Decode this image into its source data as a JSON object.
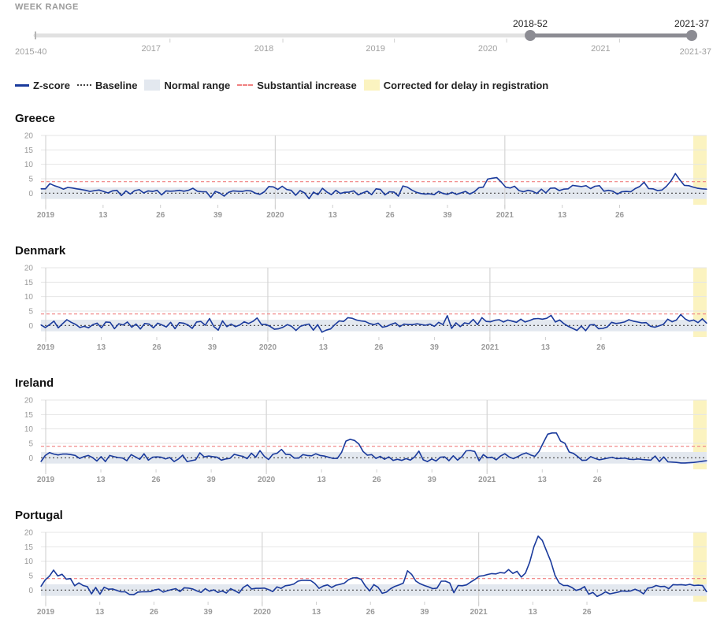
{
  "range": {
    "header": "WEEK RANGE",
    "min_label": "2015-40",
    "max_label": "2021-37",
    "start_handle": "2018-52",
    "end_handle": "2021-37",
    "start_fraction": 0.754,
    "year_labels": [
      {
        "label": "2017",
        "frac": 0.205
      },
      {
        "label": "2018",
        "frac": 0.377
      },
      {
        "label": "2019",
        "frac": 0.547
      },
      {
        "label": "2020",
        "frac": 0.718
      },
      {
        "label": "2021",
        "frac": 0.89
      }
    ]
  },
  "legend": {
    "zscore": "Z-score",
    "baseline": "Baseline",
    "normal": "Normal range",
    "substantial": "Substantial increase",
    "corrected": "Corrected for delay in registration"
  },
  "colors": {
    "series": "#1a3a9c",
    "baseline": "#444444",
    "normal_band": "#e3e8ef",
    "substantial": "#f08080",
    "corrected": "#fbf3c0",
    "grid": "#e6e6e6",
    "track": "#e1e1e1",
    "track_active": "#8c8c93"
  },
  "chart_data": [
    {
      "type": "line",
      "title": "Greece",
      "ylim": [
        -4,
        20
      ],
      "yticks": [
        0,
        5,
        10,
        15,
        20
      ],
      "xticks": [
        "2019",
        "13",
        "26",
        "39",
        "2020",
        "13",
        "26",
        "39",
        "2021",
        "13",
        "26"
      ],
      "normal_range": [
        -2,
        2
      ],
      "substantial_threshold": 4,
      "baseline": 0,
      "corrected_last_weeks": 2,
      "series": [
        {
          "values": [
            1.5,
            1.5,
            3.3,
            2.6,
            2.1,
            1.4,
            2.0,
            1.8,
            1.5,
            1.3,
            1.0,
            0.6,
            0.9,
            1.1,
            0.6,
            0.1,
            0.8,
            1.0,
            -0.8,
            0.8,
            -0.3,
            0.9,
            1.2,
            0.1,
            0.8,
            0.6,
            1.0,
            -0.6,
            0.8,
            0.7,
            0.8,
            1.0,
            0.7,
            1.0,
            1.7,
            0.7,
            0.5,
            0.5,
            -1.5,
            0.6,
            0.1,
            -1.0,
            0.3,
            0.8,
            0.7,
            0.6,
            0.9,
            0.8,
            0.0,
            -0.4,
            0.5,
            2.3,
            2.2,
            1.3,
            2.4,
            1.3,
            1.0,
            -0.7,
            0.9,
            0.1,
            -1.9,
            0.4,
            -0.5,
            1.7,
            0.4,
            -0.5,
            1.0,
            -0.1,
            0.3,
            0.4,
            0.8,
            -0.6,
            0.1,
            0.7,
            -0.5,
            1.5,
            1.3,
            -0.6,
            0.5,
            0.4,
            -1.0,
            2.5,
            2.1,
            1.1,
            0.3,
            -0.1,
            -0.3,
            -0.2,
            -0.5,
            0.6,
            -0.1,
            -0.4,
            0.3,
            -0.4,
            0.1,
            0.6,
            -0.3,
            0.5,
            1.9,
            2.1,
            4.9,
            5.2,
            5.4,
            3.9,
            2.1,
            1.8,
            2.4,
            0.9,
            0.5,
            1.0,
            0.7,
            -0.1,
            1.4,
            0.1,
            1.7,
            1.8,
            0.9,
            1.4,
            1.5,
            2.7,
            2.5,
            2.3,
            2.6,
            1.6,
            2.4,
            2.6,
            0.7,
            1.0,
            0.7,
            -0.3,
            0.5,
            0.6,
            0.5,
            1.6,
            2.3,
            3.8,
            1.6,
            1.5,
            0.9,
            1.1,
            2.4,
            4.2,
            6.8,
            4.6,
            2.7,
            2.6,
            2.1,
            1.7,
            1.5,
            1.4
          ]
        }
      ]
    },
    {
      "type": "line",
      "title": "Denmark",
      "ylim": [
        -4,
        20
      ],
      "yticks": [
        0,
        5,
        10,
        15,
        20
      ],
      "xticks": [
        "2019",
        "13",
        "26",
        "39",
        "2020",
        "13",
        "26",
        "39",
        "2021",
        "13",
        "26"
      ],
      "normal_range": [
        -2,
        2
      ],
      "substantial_threshold": 4,
      "baseline": 0,
      "corrected_last_weeks": 2,
      "series": [
        {
          "values": [
            0.2,
            -0.7,
            0.3,
            1.5,
            -0.8,
            0.6,
            2.0,
            1.1,
            0.4,
            -0.7,
            -0.3,
            -0.8,
            0.3,
            0.8,
            -0.8,
            1.2,
            1.1,
            -1.1,
            0.6,
            0.2,
            1.2,
            -0.6,
            0.5,
            -1.2,
            0.7,
            0.5,
            -0.8,
            0.8,
            0.2,
            -0.5,
            1.1,
            -1.1,
            1.0,
            0.8,
            0.2,
            -1.0,
            1.2,
            1.4,
            0.1,
            2.4,
            -0.4,
            -1.6,
            1.6,
            -0.4,
            0.5,
            -0.4,
            0.2,
            1.3,
            0.7,
            1.4,
            2.6,
            0.4,
            0.4,
            -0.3,
            -1.3,
            -1.1,
            -0.6,
            0.3,
            -0.3,
            -1.7,
            -0.3,
            0.2,
            0.5,
            -1.6,
            0.3,
            -2.3,
            -1.6,
            -1.2,
            0.3,
            1.6,
            1.4,
            2.7,
            2.5,
            1.9,
            1.6,
            1.4,
            0.7,
            0.3,
            0.8,
            -0.6,
            -0.3,
            0.4,
            0.9,
            -0.4,
            0.5,
            0.3,
            0.3,
            0.6,
            0.3,
            0.1,
            0.5,
            -0.3,
            1.1,
            0.3,
            3.4,
            -1.0,
            0.9,
            -0.4,
            0.9,
            0.6,
            2.1,
            0.3,
            2.7,
            1.4,
            1.3,
            1.8,
            2.0,
            1.2,
            1.9,
            1.5,
            1.1,
            2.2,
            1.2,
            1.7,
            2.3,
            2.4,
            2.2,
            2.5,
            3.5,
            1.2,
            1.9,
            0.6,
            -0.3,
            -1.0,
            -1.7,
            -0.2,
            -1.8,
            0.2,
            0.3,
            -1.1,
            -1.0,
            -0.5,
            1.1,
            0.7,
            0.9,
            1.2,
            2.0,
            1.5,
            1.2,
            0.9,
            1.0,
            -0.3,
            -0.6,
            -0.1,
            0.4,
            2.2,
            1.3,
            1.9,
            3.8,
            2.3,
            1.5,
            1.9,
            1.0,
            2.3,
            0.8
          ]
        }
      ]
    },
    {
      "type": "line",
      "title": "Ireland",
      "ylim": [
        -4,
        20
      ],
      "yticks": [
        0,
        5,
        10,
        15,
        20
      ],
      "xticks": [
        "2019",
        "13",
        "26",
        "39",
        "2020",
        "13",
        "26",
        "39",
        "2021",
        "13",
        "26"
      ],
      "normal_range": [
        -2,
        2
      ],
      "substantial_threshold": 4,
      "baseline": 0,
      "corrected_last_weeks": 2,
      "series": [
        {
          "values": [
            -1.3,
            0.8,
            1.8,
            1.3,
            1.0,
            1.3,
            1.3,
            1.1,
            0.8,
            -0.2,
            0.4,
            0.8,
            0.1,
            -1.1,
            0.4,
            -1.3,
            0.8,
            0.4,
            0.1,
            -0.1,
            -1.0,
            1.1,
            0.3,
            -0.5,
            1.4,
            -0.8,
            0.2,
            0.3,
            0.2,
            -0.4,
            0.1,
            -1.3,
            -0.4,
            0.9,
            -1.3,
            -1.0,
            -0.7,
            1.7,
            0.3,
            0.6,
            0.4,
            0.2,
            -0.8,
            -0.4,
            -0.2,
            1.2,
            0.8,
            0.5,
            -0.3,
            1.6,
            0.2,
            2.5,
            0.5,
            -0.6,
            1.2,
            1.6,
            2.9,
            1.2,
            1.1,
            -0.1,
            -0.1,
            1.1,
            0.8,
            0.7,
            1.4,
            0.8,
            0.6,
            0.2,
            -0.2,
            -0.2,
            1.9,
            5.8,
            6.4,
            6.0,
            4.8,
            2.2,
            0.9,
            1.1,
            -0.2,
            0.5,
            -0.5,
            0.3,
            -0.9,
            -0.5,
            -0.9,
            -0.3,
            -0.8,
            0.3,
            2.3,
            -0.7,
            -1.3,
            -0.4,
            -1.1,
            0.2,
            0.3,
            -1.0,
            0.7,
            -0.8,
            0.4,
            2.4,
            2.5,
            2.2,
            -1.0,
            1.1,
            0.0,
            0.2,
            -0.7,
            0.6,
            1.4,
            0.3,
            -0.3,
            0.4,
            1.2,
            1.7,
            1.0,
            0.5,
            2.3,
            5.3,
            8.2,
            8.6,
            8.6,
            5.8,
            5.0,
            2.0,
            1.5,
            0.4,
            -0.9,
            -0.8,
            0.4,
            -0.2,
            -0.7,
            -0.4,
            -0.1,
            0.2,
            -0.3,
            -0.2,
            -0.1,
            -0.5,
            -0.6,
            -0.4,
            -0.6,
            -0.7,
            -0.8,
            0.6,
            -1.3,
            0.3,
            -1.4,
            -1.5,
            -1.6,
            -1.8,
            -1.8,
            -1.7,
            -1.6,
            -1.4,
            -1.2,
            -1.0
          ]
        }
      ]
    },
    {
      "type": "line",
      "title": "Portugal",
      "ylim": [
        -4,
        20
      ],
      "yticks": [
        0,
        5,
        10,
        15,
        20
      ],
      "xticks": [
        "2019",
        "13",
        "26",
        "39",
        "2020",
        "13",
        "26",
        "39",
        "2021",
        "13",
        "26"
      ],
      "normal_range": [
        -2,
        2
      ],
      "substantial_threshold": 4,
      "baseline": 0,
      "corrected_last_weeks": 2,
      "series": [
        {
          "values": [
            1.3,
            3.5,
            4.8,
            6.9,
            4.9,
            5.5,
            3.8,
            4.0,
            1.5,
            2.5,
            1.6,
            1.2,
            -1.3,
            0.9,
            -1.4,
            1.0,
            0.3,
            0.4,
            -0.1,
            -0.6,
            -0.6,
            -1.5,
            -1.6,
            -0.7,
            -0.6,
            -0.6,
            -0.5,
            0.1,
            0.3,
            -0.7,
            -0.2,
            0.2,
            0.5,
            -0.5,
            0.8,
            0.7,
            0.4,
            -0.3,
            -0.8,
            0.5,
            -0.4,
            0.1,
            -0.8,
            -0.3,
            -1.0,
            0.5,
            -0.2,
            -1.0,
            0.9,
            1.8,
            0.4,
            0.6,
            0.6,
            0.7,
            0.2,
            -0.5,
            1.1,
            0.6,
            1.5,
            1.7,
            2.1,
            3.1,
            3.4,
            3.4,
            3.3,
            2.3,
            0.6,
            1.4,
            1.8,
            0.9,
            1.7,
            2.0,
            2.4,
            3.6,
            4.2,
            4.3,
            3.7,
            1.4,
            -0.3,
            1.9,
            1.0,
            -1.1,
            -0.7,
            0.5,
            1.3,
            1.8,
            2.4,
            6.7,
            5.4,
            3.1,
            2.2,
            1.6,
            1.1,
            0.5,
            0.7,
            3.1,
            3.1,
            2.5,
            -0.9,
            1.6,
            1.5,
            1.8,
            2.8,
            3.7,
            4.8,
            5.0,
            5.4,
            5.7,
            5.6,
            6.1,
            5.9,
            7.1,
            5.8,
            6.5,
            4.5,
            5.9,
            9.7,
            15.0,
            18.7,
            17.2,
            13.5,
            10.0,
            5.1,
            2.5,
            1.6,
            1.6,
            0.9,
            -0.1,
            0.3,
            1.2,
            -1.4,
            -0.8,
            -2.2,
            -1.5,
            -0.6,
            -1.3,
            -1.0,
            -0.7,
            -0.3,
            -0.4,
            -0.3,
            0.3,
            -0.3,
            -1.3,
            0.7,
            0.9,
            1.6,
            1.2,
            1.3,
            0.5,
            1.9,
            1.8,
            1.9,
            1.7,
            2.0,
            1.6,
            1.7,
            1.6,
            -0.6
          ]
        }
      ]
    }
  ]
}
